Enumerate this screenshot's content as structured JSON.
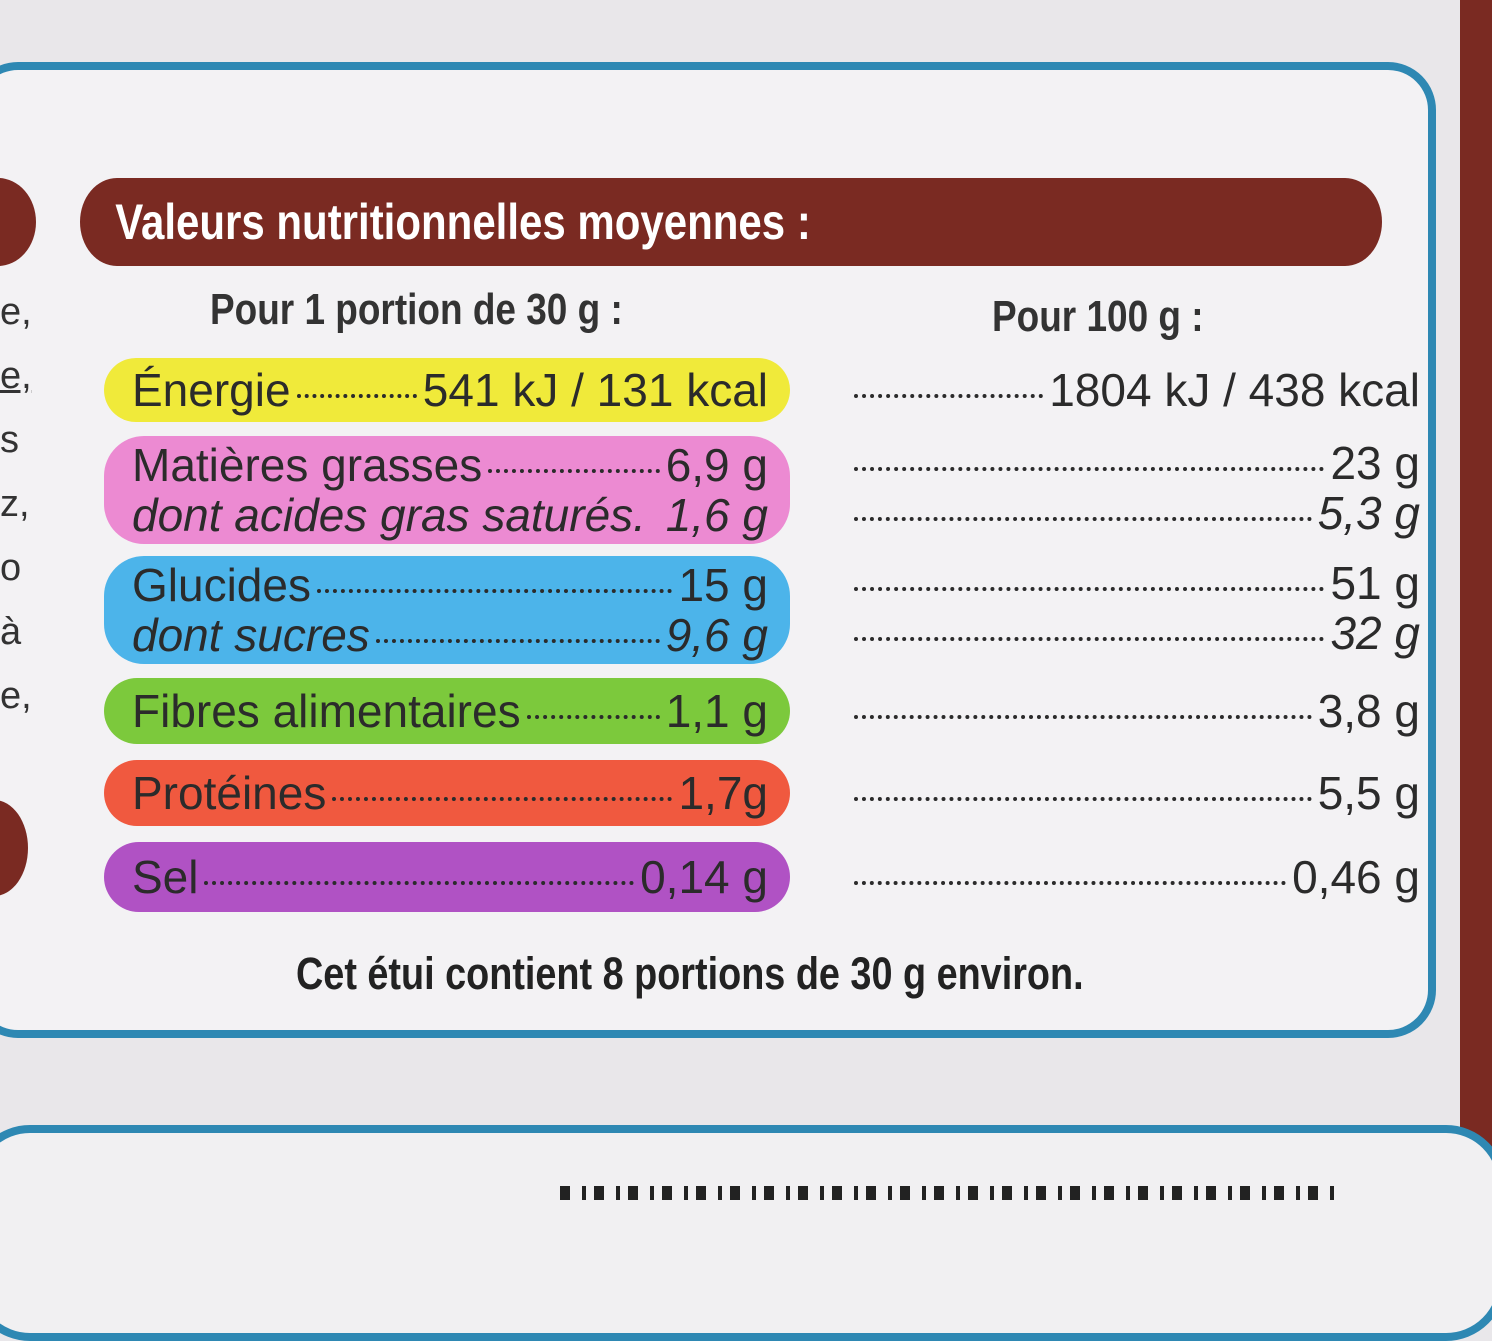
{
  "colors": {
    "brand_red": "#7a2a22",
    "frame_blue": "#2e88b3",
    "energy_yellow": "#f0ea3a",
    "fat_pink": "#ec8ad2",
    "carb_blue": "#4cb4ea",
    "fiber_green": "#7cc93c",
    "protein_red": "#f0593f",
    "salt_purple": "#b052c4"
  },
  "title": "Valeurs nutritionnelles moyennes :",
  "headers": {
    "per_portion": "Pour 1 portion de 30 g :",
    "per_100g": "Pour 100 g :"
  },
  "rows": [
    {
      "label": "Énergie",
      "portion": "541 kJ / 131 kcal",
      "per100": "1804 kJ / 438 kcal",
      "italic": false
    },
    {
      "label": "Matières grasses",
      "portion": "6,9 g",
      "per100": "23 g",
      "italic": false
    },
    {
      "label": "dont acides gras saturés.",
      "portion": "1,6 g",
      "per100": "5,3 g",
      "italic": true
    },
    {
      "label": "Glucides",
      "portion": "15 g",
      "per100": "51 g",
      "italic": false
    },
    {
      "label": "dont sucres",
      "portion": "9,6 g",
      "per100": "32 g",
      "italic": true
    },
    {
      "label": "Fibres alimentaires",
      "portion": "1,1 g",
      "per100": "3,8 g",
      "italic": false
    },
    {
      "label": "Protéines",
      "portion": "1,7g",
      "per100": "5,5 g",
      "italic": false
    },
    {
      "label": "Sel",
      "portion": "0,14 g",
      "per100": "0,46 g",
      "italic": false
    }
  ],
  "footer": "Cet étui contient 8 portions de 30 g environ.",
  "left_edge_fragments": [
    "e,",
    "e,",
    "s",
    "z,",
    "o",
    "à",
    "e,"
  ]
}
